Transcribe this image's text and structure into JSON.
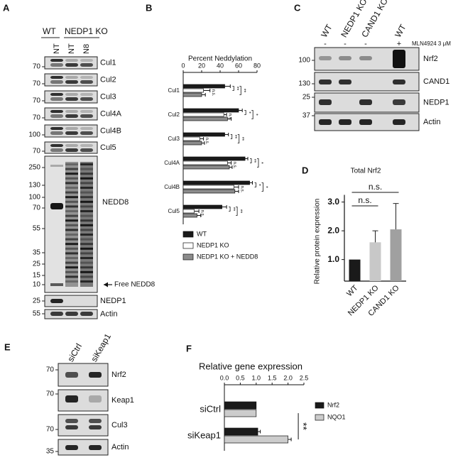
{
  "panel_a": {
    "letter": "A",
    "groups": [
      "WT",
      "NEDP1 KO"
    ],
    "lanes": [
      "NT",
      "NT",
      "N8"
    ],
    "blots": [
      {
        "label": "Cul1",
        "marker": 70
      },
      {
        "label": "Cul2",
        "marker": 70
      },
      {
        "label": "Cul3",
        "marker": 70
      },
      {
        "label": "Cul4A",
        "marker": 70
      },
      {
        "label": "Cul4B",
        "marker": 100
      },
      {
        "label": "Cul5",
        "marker": 70
      },
      {
        "label": "NEDD8",
        "markers": [
          250,
          130,
          100,
          70,
          55,
          35,
          25,
          15,
          10
        ]
      },
      {
        "label": "NEDP1",
        "marker": 25
      },
      {
        "label": "Actin",
        "marker": 55
      }
    ],
    "arrow_label": "Free NEDD8"
  },
  "panel_c": {
    "letter": "C",
    "lanes": [
      "WT",
      "NEDP1 KO",
      "CAND1 KO",
      "WT"
    ],
    "treatment": [
      "-",
      "-",
      "-",
      "+"
    ],
    "treatment_label": "MLN4924 3 μM",
    "blots": [
      {
        "label": "Nrf2",
        "marker": 100
      },
      {
        "label": "CAND1",
        "marker": 130
      },
      {
        "label": "NEDP1",
        "marker": 25
      },
      {
        "label": "Actin",
        "marker": 37
      }
    ]
  },
  "panel_e": {
    "letter": "E",
    "lanes": [
      "siCtrl",
      "siKeap1"
    ],
    "blots": [
      {
        "label": "Nrf2",
        "marker": 70
      },
      {
        "label": "Keap1",
        "marker": 70
      },
      {
        "label": "Cul3",
        "marker": 70
      },
      {
        "label": "Actin",
        "marker": 35
      }
    ]
  },
  "chart_data": [
    {
      "panel": "B",
      "type": "hbar",
      "title": "Percent Neddylation",
      "categories": [
        "Cul1",
        "Cul2",
        "Cul3",
        "Cul4A",
        "Cul4B",
        "Cul5"
      ],
      "series": [
        {
          "name": "WT",
          "color": "#1a1a1a",
          "values": [
            45,
            60,
            45,
            67,
            72,
            42
          ],
          "errors": [
            6,
            4,
            4,
            3,
            3,
            5
          ]
        },
        {
          "name": "NEDP1 KO",
          "color": "#ffffff",
          "values": [
            22,
            44,
            18,
            48,
            55,
            12
          ],
          "errors": [
            7,
            3,
            4,
            4,
            5,
            5
          ]
        },
        {
          "name": "NEDP1 KO + NEDD8",
          "color": "#8c8c8c",
          "values": [
            20,
            48,
            20,
            50,
            56,
            15
          ],
          "errors": [
            4,
            4,
            3,
            3,
            4,
            4
          ]
        }
      ],
      "xlim": [
        0,
        80
      ],
      "xticks": [
        0,
        20,
        40,
        60,
        80
      ],
      "annotations": [
        [
          "**",
          "n.s.",
          "**"
        ],
        [
          "*",
          "n.s.",
          "*"
        ],
        [
          "**",
          "n.s.",
          "**"
        ],
        [
          "**",
          "n.s.",
          "*"
        ],
        [
          "*",
          "n.s.",
          "*"
        ],
        [
          "**",
          "n.s.",
          "**"
        ]
      ],
      "legend": "bottom"
    },
    {
      "panel": "D",
      "type": "bar",
      "title": "Total Nrf2",
      "ylabel": "Relative protein expression",
      "categories": [
        "WT",
        "NEDP1 KO",
        "CAND1 KO"
      ],
      "values": [
        1.0,
        1.6,
        2.05
      ],
      "errors": [
        null,
        0.4,
        0.9
      ],
      "colors": [
        "#1a1a1a",
        "#c8c8c8",
        "#a0a0a0"
      ],
      "ylim": [
        0.25,
        3.25
      ],
      "yticks": [
        {
          "value": 1,
          "label": "1.0"
        },
        {
          "value": 2,
          "label": "2.0"
        },
        {
          "value": 3,
          "label": "3.0"
        }
      ],
      "annotations": [
        "n.s.",
        "n.s."
      ]
    },
    {
      "panel": "F",
      "type": "hbar",
      "title": "Relative gene expression",
      "categories": [
        "siCtrl",
        "siKeap1"
      ],
      "series": [
        {
          "name": "Nrf2",
          "color": "#1a1a1a",
          "values": [
            1.0,
            1.05
          ],
          "errors": [
            null,
            0.08
          ]
        },
        {
          "name": "NQO1",
          "color": "#cccccc",
          "values": [
            1.0,
            2.0
          ],
          "errors": [
            null,
            0.1
          ]
        }
      ],
      "xlim": [
        0,
        2.5
      ],
      "xticks": [
        {
          "value": 0,
          "label": "0.0"
        },
        0.5,
        {
          "value": 1,
          "label": "1.0"
        },
        1.5,
        {
          "value": 2,
          "label": "2.0"
        },
        2.5
      ],
      "annotations": [
        "**"
      ],
      "legend": "right"
    }
  ]
}
